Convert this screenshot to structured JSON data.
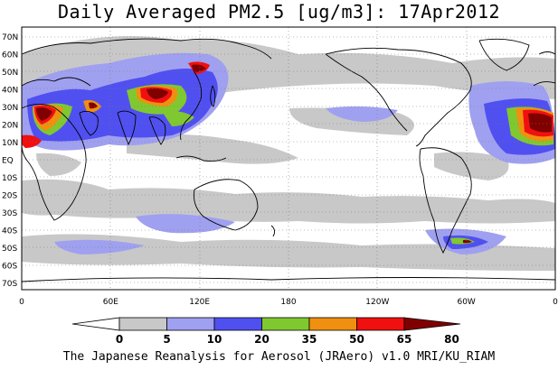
{
  "title": "Daily Averaged PM2.5 [ug/m3]: 17Apr2012",
  "credit": "The Japanese Reanalysis for Aerosol (JRAero) v1.0 MRI/KU_RIAM",
  "latitude_labels": [
    "70N",
    "60N",
    "50N",
    "40N",
    "30N",
    "20N",
    "10N",
    "EQ",
    "10S",
    "20S",
    "30S",
    "40S",
    "50S",
    "60S",
    "70S"
  ],
  "longitude_labels": [
    "0",
    "60E",
    "120E",
    "180",
    "120W",
    "60W",
    "0"
  ],
  "colorbar": {
    "bins": [
      {
        "color": "#ffffff"
      },
      {
        "color": "#c8c8c8"
      },
      {
        "color": "#a0a0f0"
      },
      {
        "color": "#5050f0"
      },
      {
        "color": "#80c830"
      },
      {
        "color": "#f09010"
      },
      {
        "color": "#f01010"
      },
      {
        "color": "#800000"
      }
    ],
    "labels": [
      "0",
      "5",
      "10",
      "20",
      "35",
      "50",
      "65",
      "80"
    ]
  },
  "colors": {
    "land_outline": "#000000",
    "grid": "#7a7a7a"
  }
}
